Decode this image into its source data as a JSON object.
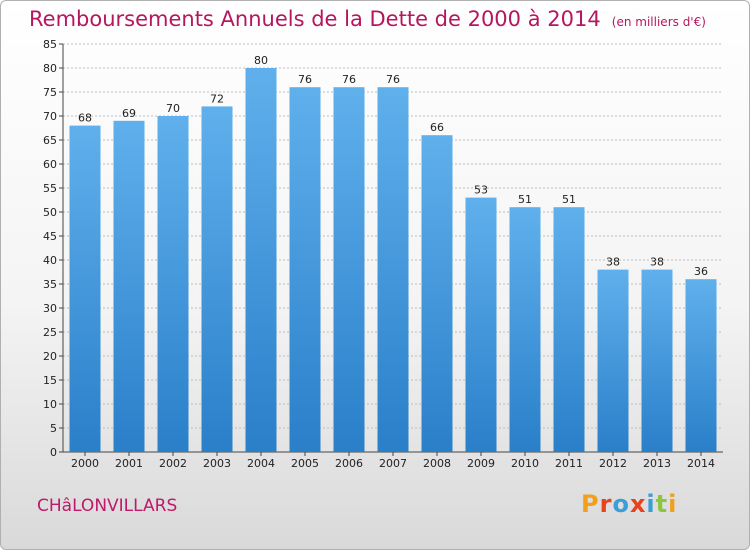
{
  "header": {
    "title": "Remboursements Annuels de la Dette de 2000 à 2014",
    "subtitle": "(en milliers d'€)"
  },
  "footer": {
    "commune": "CHâLONVILLARS",
    "logo_letters": [
      "P",
      "r",
      "o",
      "x",
      "i",
      "t",
      "i"
    ],
    "logo_colors": [
      "#f2a01b",
      "#e8411c",
      "#3b9fd7",
      "#e8411c",
      "#3b9fd7",
      "#8cc63f",
      "#f2a01b"
    ]
  },
  "colors": {
    "bar_light": "#5fb0ec",
    "bar_dark": "#2a7fc9",
    "title": "#b5175f",
    "grid": "#bdbdbd"
  },
  "chart_data": {
    "type": "bar",
    "title": "Remboursements Annuels de la Dette de 2000 à 2014",
    "subtitle": "(en milliers d'€)",
    "xlabel": "",
    "ylabel": "",
    "categories": [
      "2000",
      "2001",
      "2002",
      "2003",
      "2004",
      "2005",
      "2006",
      "2007",
      "2008",
      "2009",
      "2010",
      "2011",
      "2012",
      "2013",
      "2014"
    ],
    "values": [
      68,
      69,
      70,
      72,
      80,
      76,
      76,
      76,
      66,
      53,
      51,
      51,
      38,
      38,
      36
    ],
    "ylim": [
      0,
      85
    ],
    "ytick_step": 5,
    "grid": true,
    "legend": "none"
  }
}
